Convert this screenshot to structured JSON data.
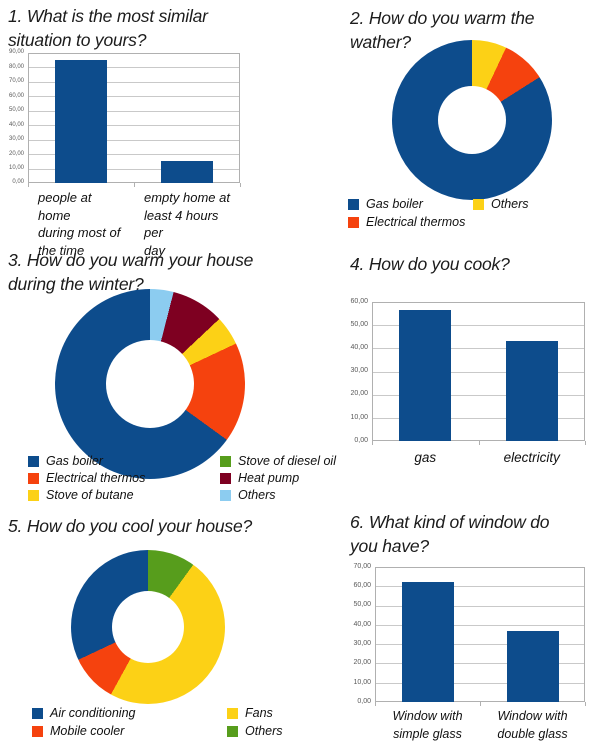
{
  "page": {
    "background": "#ffffff"
  },
  "palette": {
    "blue": "#0d4c8c",
    "orange_red": "#f5420e",
    "yellow": "#fcd116",
    "green": "#579d1c",
    "dark_red": "#7e0021",
    "light_blue": "#8cccf0"
  },
  "styles": {
    "grid_color": "#c9c9c9",
    "plot_border_color": "#b0b0b0",
    "tick_text_color": "#595959",
    "text_color": "#1c1c1c"
  },
  "chart_data": [
    {
      "key": "q1",
      "type": "bar",
      "title": "1. What is the most similar\nsituation to yours?",
      "categories": [
        "people at home\nduring most of\nthe time",
        "empty home at\nleast 4 hours per\nday"
      ],
      "values": [
        85,
        15
      ],
      "ylim": [
        0,
        90
      ],
      "ytick_step": 10,
      "yticks": [
        "90,00",
        "80,00",
        "70,00",
        "60,00",
        "50,00",
        "40,00",
        "30,00",
        "20,00",
        "10,00",
        "0,00"
      ],
      "bar_color": "#0d4c8c",
      "grid": true,
      "legend": null
    },
    {
      "key": "q2",
      "type": "donut",
      "title": "2. How do you warm the\nwather?",
      "slices": [
        {
          "label": "Gas boiler",
          "value": 84,
          "color": "#0d4c8c"
        },
        {
          "label": "Electrical thermos",
          "value": 9,
          "color": "#f5420e"
        },
        {
          "label": "Others",
          "value": 7,
          "color": "#fcd116"
        }
      ],
      "legend_columns": [
        [
          "Gas boiler",
          "Electrical thermos"
        ],
        [
          "Others"
        ]
      ],
      "legend_position": "bottom"
    },
    {
      "key": "q3",
      "type": "donut",
      "title": "3. How do you warm your house\nduring the winter?",
      "slices": [
        {
          "label": "Gas boiler",
          "value": 65,
          "color": "#0d4c8c"
        },
        {
          "label": "Electrical thermos",
          "value": 17,
          "color": "#f5420e"
        },
        {
          "label": "Stove of butane",
          "value": 5,
          "color": "#fcd116"
        },
        {
          "label": "Stove of diesel oil",
          "value": 0,
          "color": "#579d1c"
        },
        {
          "label": "Heat pump",
          "value": 9,
          "color": "#7e0021"
        },
        {
          "label": "Others",
          "value": 4,
          "color": "#8cccf0"
        }
      ],
      "legend_columns": [
        [
          "Gas boiler",
          "Electrical thermos",
          "Stove of butane"
        ],
        [
          "Stove of diesel oil",
          "Heat pump",
          "Others"
        ]
      ],
      "legend_position": "bottom"
    },
    {
      "key": "q4",
      "type": "bar",
      "title": "4. How do you cook?",
      "categories": [
        "gas",
        "electricity"
      ],
      "values": [
        56.5,
        43
      ],
      "ylim": [
        0,
        60
      ],
      "ytick_step": 10,
      "yticks": [
        "60,00",
        "50,00",
        "40,00",
        "30,00",
        "20,00",
        "10,00",
        "0,00"
      ],
      "bar_color": "#0d4c8c",
      "grid": true,
      "legend": null
    },
    {
      "key": "q5",
      "type": "donut",
      "title": "5. How do you cool your house?",
      "slices": [
        {
          "label": "Air conditioning",
          "value": 32,
          "color": "#0d4c8c"
        },
        {
          "label": "Mobile cooler",
          "value": 10,
          "color": "#f5420e"
        },
        {
          "label": "Fans",
          "value": 48,
          "color": "#fcd116"
        },
        {
          "label": "Others",
          "value": 10,
          "color": "#579d1c"
        }
      ],
      "legend_columns": [
        [
          "Air conditioning",
          "Mobile cooler"
        ],
        [
          "Fans",
          "Others"
        ]
      ],
      "legend_position": "bottom"
    },
    {
      "key": "q6",
      "type": "bar",
      "title": "6. What kind of window do\nyou have?",
      "categories": [
        "Window with\nsimple glass",
        "Window with\ndouble glass"
      ],
      "values": [
        62,
        37
      ],
      "ylim": [
        0,
        70
      ],
      "ytick_step": 10,
      "yticks": [
        "70,00",
        "60,00",
        "50,00",
        "40,00",
        "30,00",
        "20,00",
        "10,00",
        "0,00"
      ],
      "bar_color": "#0d4c8c",
      "grid": true,
      "legend": null
    }
  ]
}
